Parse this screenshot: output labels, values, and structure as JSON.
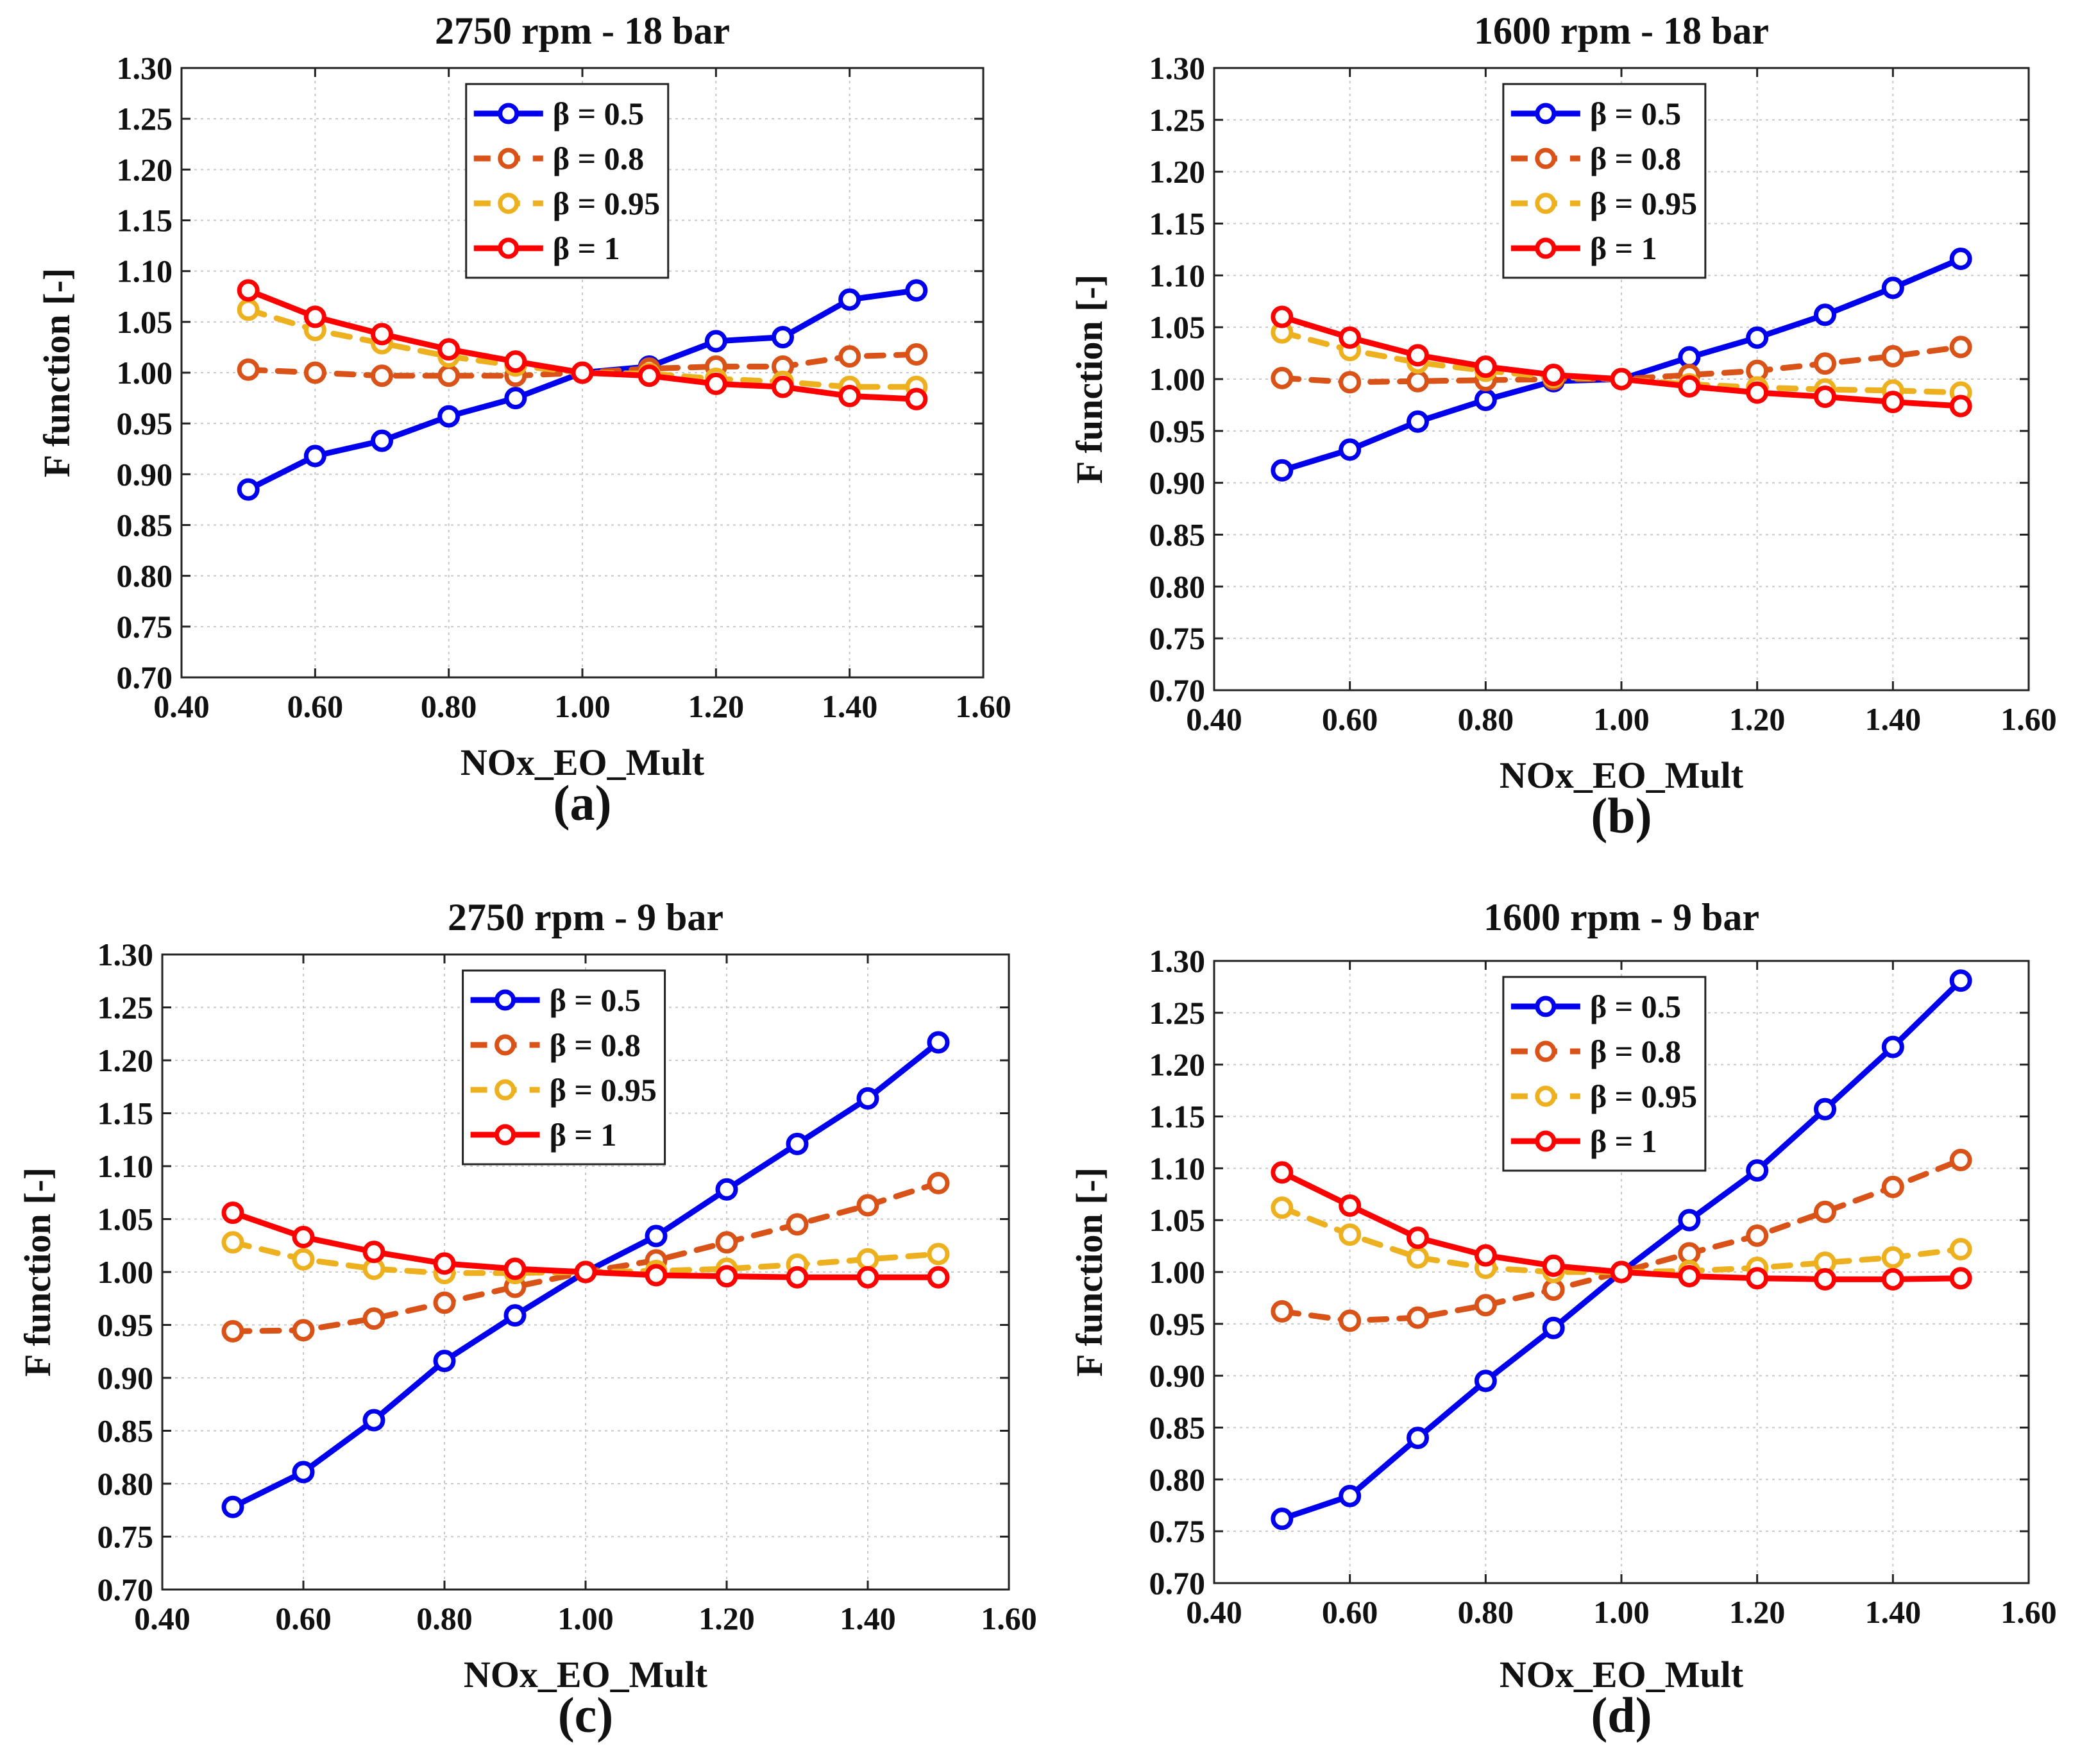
{
  "chart_data": [
    {
      "type": "line",
      "caption": "(a)",
      "title": "2750 rpm - 18 bar",
      "xlabel": "NOx_EO_Mult",
      "ylabel": "F function [-]",
      "xlim": [
        0.4,
        1.6
      ],
      "ylim": [
        0.7,
        1.3
      ],
      "xticks": [
        "0.40",
        "0.60",
        "0.80",
        "1.00",
        "1.20",
        "1.40",
        "1.60"
      ],
      "yticks": [
        "0.70",
        "0.75",
        "0.80",
        "0.85",
        "0.90",
        "0.95",
        "1.00",
        "1.05",
        "1.10",
        "1.15",
        "1.20",
        "1.25",
        "1.30"
      ],
      "grid": true,
      "legend_position": "top-center",
      "x": [
        0.5,
        0.6,
        0.7,
        0.8,
        0.9,
        1.0,
        1.1,
        1.2,
        1.3,
        1.4,
        1.5
      ],
      "series": [
        {
          "name": "β = 0.5",
          "color": "#0000ee",
          "style": "solid",
          "values": [
            0.885,
            0.918,
            0.933,
            0.957,
            0.975,
            1.0,
            1.006,
            1.031,
            1.035,
            1.072,
            1.081
          ]
        },
        {
          "name": "β = 0.8",
          "color": "#d95319",
          "style": "dashed",
          "values": [
            1.003,
            1.0,
            0.997,
            0.997,
            0.997,
            1.0,
            1.004,
            1.006,
            1.006,
            1.016,
            1.018
          ]
        },
        {
          "name": "β = 0.95",
          "color": "#edb120",
          "style": "dashed",
          "values": [
            1.062,
            1.042,
            1.029,
            1.016,
            1.007,
            1.0,
            0.999,
            0.994,
            0.991,
            0.986,
            0.986
          ]
        },
        {
          "name": "β = 1",
          "color": "#ff0000",
          "style": "solid",
          "values": [
            1.081,
            1.055,
            1.038,
            1.023,
            1.011,
            1.0,
            0.997,
            0.989,
            0.986,
            0.977,
            0.974
          ]
        }
      ]
    },
    {
      "type": "line",
      "caption": "(b)",
      "title": "1600 rpm - 18 bar",
      "xlabel": "NOx_EO_Mult",
      "ylabel": "F function [-]",
      "xlim": [
        0.4,
        1.6
      ],
      "ylim": [
        0.7,
        1.3
      ],
      "xticks": [
        "0.40",
        "0.60",
        "0.80",
        "1.00",
        "1.20",
        "1.40",
        "1.60"
      ],
      "yticks": [
        "0.70",
        "0.75",
        "0.80",
        "0.85",
        "0.90",
        "0.95",
        "1.00",
        "1.05",
        "1.10",
        "1.15",
        "1.20",
        "1.25",
        "1.30"
      ],
      "grid": true,
      "legend_position": "top-center",
      "x": [
        0.5,
        0.6,
        0.7,
        0.8,
        0.9,
        1.0,
        1.1,
        1.2,
        1.3,
        1.4,
        1.5
      ],
      "series": [
        {
          "name": "β = 0.5",
          "color": "#0000ee",
          "style": "solid",
          "values": [
            0.912,
            0.932,
            0.959,
            0.98,
            0.998,
            1.0,
            1.021,
            1.04,
            1.062,
            1.088,
            1.116
          ]
        },
        {
          "name": "β = 0.8",
          "color": "#d95319",
          "style": "dashed",
          "values": [
            1.001,
            0.997,
            0.998,
            0.999,
            1.0,
            1.0,
            1.004,
            1.008,
            1.015,
            1.022,
            1.031
          ]
        },
        {
          "name": "β = 0.95",
          "color": "#edb120",
          "style": "dashed",
          "values": [
            1.045,
            1.028,
            1.016,
            1.008,
            1.002,
            1.0,
            0.995,
            0.992,
            0.99,
            0.989,
            0.987
          ]
        },
        {
          "name": "β = 1",
          "color": "#ff0000",
          "style": "solid",
          "values": [
            1.06,
            1.04,
            1.023,
            1.012,
            1.004,
            1.0,
            0.993,
            0.987,
            0.983,
            0.978,
            0.974
          ]
        }
      ]
    },
    {
      "type": "line",
      "caption": "(c)",
      "title": "2750 rpm - 9 bar",
      "xlabel": "NOx_EO_Mult",
      "ylabel": "F function [-]",
      "xlim": [
        0.4,
        1.6
      ],
      "ylim": [
        0.7,
        1.3
      ],
      "xticks": [
        "0.40",
        "0.60",
        "0.80",
        "1.00",
        "1.20",
        "1.40",
        "1.60"
      ],
      "yticks": [
        "0.70",
        "0.75",
        "0.80",
        "0.85",
        "0.90",
        "0.95",
        "1.00",
        "1.05",
        "1.10",
        "1.15",
        "1.20",
        "1.25",
        "1.30"
      ],
      "grid": true,
      "legend_position": "top-center",
      "x": [
        0.5,
        0.6,
        0.7,
        0.8,
        0.9,
        1.0,
        1.1,
        1.2,
        1.3,
        1.4,
        1.5
      ],
      "series": [
        {
          "name": "β = 0.5",
          "color": "#0000ee",
          "style": "solid",
          "values": [
            0.778,
            0.811,
            0.86,
            0.916,
            0.959,
            1.0,
            1.034,
            1.078,
            1.121,
            1.164,
            1.217
          ]
        },
        {
          "name": "β = 0.8",
          "color": "#d95319",
          "style": "dashed",
          "values": [
            0.944,
            0.945,
            0.956,
            0.971,
            0.986,
            1.0,
            1.011,
            1.028,
            1.045,
            1.063,
            1.084
          ]
        },
        {
          "name": "β = 0.95",
          "color": "#edb120",
          "style": "dashed",
          "values": [
            1.028,
            1.012,
            1.003,
            0.999,
            0.999,
            1.0,
            1.001,
            1.003,
            1.007,
            1.012,
            1.017
          ]
        },
        {
          "name": "β = 1",
          "color": "#ff0000",
          "style": "solid",
          "values": [
            1.056,
            1.033,
            1.019,
            1.008,
            1.003,
            1.0,
            0.997,
            0.996,
            0.995,
            0.995,
            0.995
          ]
        }
      ]
    },
    {
      "type": "line",
      "caption": "(d)",
      "title": "1600 rpm - 9 bar",
      "xlabel": "NOx_EO_Mult",
      "ylabel": "F function [-]",
      "xlim": [
        0.4,
        1.6
      ],
      "ylim": [
        0.7,
        1.3
      ],
      "xticks": [
        "0.40",
        "0.60",
        "0.80",
        "1.00",
        "1.20",
        "1.40",
        "1.60"
      ],
      "yticks": [
        "0.70",
        "0.75",
        "0.80",
        "0.85",
        "0.90",
        "0.95",
        "1.00",
        "1.05",
        "1.10",
        "1.15",
        "1.20",
        "1.25",
        "1.30"
      ],
      "grid": true,
      "legend_position": "top-center",
      "x": [
        0.5,
        0.6,
        0.7,
        0.8,
        0.9,
        1.0,
        1.1,
        1.2,
        1.3,
        1.4,
        1.5
      ],
      "series": [
        {
          "name": "β = 0.5",
          "color": "#0000ee",
          "style": "solid",
          "values": [
            0.762,
            0.784,
            0.84,
            0.895,
            0.946,
            1.0,
            1.05,
            1.098,
            1.157,
            1.217,
            1.281
          ]
        },
        {
          "name": "β = 0.8",
          "color": "#d95319",
          "style": "dashed",
          "values": [
            0.962,
            0.953,
            0.956,
            0.968,
            0.983,
            1.0,
            1.018,
            1.035,
            1.058,
            1.082,
            1.108
          ]
        },
        {
          "name": "β = 0.95",
          "color": "#edb120",
          "style": "dashed",
          "values": [
            1.062,
            1.036,
            1.014,
            1.004,
            1.0,
            1.0,
            1.001,
            1.004,
            1.009,
            1.014,
            1.022
          ]
        },
        {
          "name": "β = 1",
          "color": "#ff0000",
          "style": "solid",
          "values": [
            1.096,
            1.064,
            1.033,
            1.016,
            1.006,
            1.0,
            0.996,
            0.994,
            0.993,
            0.993,
            0.994
          ]
        }
      ]
    }
  ]
}
